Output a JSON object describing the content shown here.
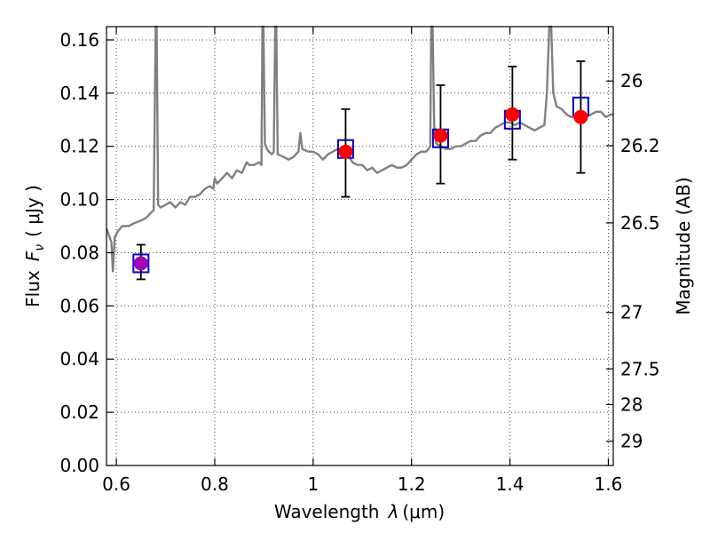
{
  "chart_data": {
    "type": "scatter",
    "xlabel_text": "Wavelength",
    "xlabel_symbol": "λ",
    "xlabel_unit": "(μm)",
    "ylabel_text": "Flux",
    "ylabel_symbol": "F",
    "ylabel_subscript": "ν",
    "ylabel_unit": "( μJy )",
    "y2label": "Magnitude (AB)",
    "xlim": [
      0.58,
      1.61
    ],
    "ylim": [
      0.0,
      0.165
    ],
    "x_ticks": [
      0.6,
      0.8,
      1.0,
      1.2,
      1.4,
      1.6
    ],
    "x_tick_labels": [
      "0.6",
      "0.8",
      "1",
      "1.2",
      "1.4",
      "1.6"
    ],
    "y_ticks": [
      0.0,
      0.02,
      0.04,
      0.06,
      0.08,
      0.1,
      0.12,
      0.14,
      0.16
    ],
    "y_tick_labels": [
      "0.00",
      "0.02",
      "0.04",
      "0.06",
      "0.08",
      "0.10",
      "0.12",
      "0.14",
      "0.16"
    ],
    "y2_ticks": [
      26,
      26.2,
      26.5,
      27,
      27.5,
      28,
      29
    ],
    "y2_tick_labels": [
      "26",
      "26.2",
      "26.5",
      "27",
      "27.5",
      "28",
      "29"
    ],
    "grid": true,
    "colors": {
      "model": "#808080",
      "photometry_box": "#0000cc",
      "measured": "#ff0000",
      "measured_first": "#a000b8",
      "errorbar": "#000000"
    },
    "series": [
      {
        "name": "model spectrum",
        "kind": "line",
        "points": [
          [
            0.58,
            0.089
          ],
          [
            0.586,
            0.086
          ],
          [
            0.59,
            0.084
          ],
          [
            0.593,
            0.073
          ],
          [
            0.597,
            0.086
          ],
          [
            0.603,
            0.088
          ],
          [
            0.612,
            0.09
          ],
          [
            0.625,
            0.09
          ],
          [
            0.635,
            0.091
          ],
          [
            0.648,
            0.092
          ],
          [
            0.66,
            0.093
          ],
          [
            0.67,
            0.095
          ],
          [
            0.676,
            0.096
          ],
          [
            0.68,
            0.165
          ],
          [
            0.682,
            0.165
          ],
          [
            0.685,
            0.098
          ],
          [
            0.69,
            0.097
          ],
          [
            0.7,
            0.098
          ],
          [
            0.71,
            0.099
          ],
          [
            0.72,
            0.097
          ],
          [
            0.73,
            0.099
          ],
          [
            0.74,
            0.098
          ],
          [
            0.75,
            0.101
          ],
          [
            0.76,
            0.101
          ],
          [
            0.77,
            0.102
          ],
          [
            0.78,
            0.104
          ],
          [
            0.79,
            0.105
          ],
          [
            0.797,
            0.104
          ],
          [
            0.8,
            0.108
          ],
          [
            0.805,
            0.106
          ],
          [
            0.815,
            0.108
          ],
          [
            0.825,
            0.11
          ],
          [
            0.835,
            0.108
          ],
          [
            0.845,
            0.111
          ],
          [
            0.855,
            0.11
          ],
          [
            0.865,
            0.114
          ],
          [
            0.87,
            0.113
          ],
          [
            0.88,
            0.113
          ],
          [
            0.89,
            0.114
          ],
          [
            0.895,
            0.113
          ],
          [
            0.897,
            0.165
          ],
          [
            0.899,
            0.165
          ],
          [
            0.902,
            0.121
          ],
          [
            0.906,
            0.119
          ],
          [
            0.91,
            0.118
          ],
          [
            0.916,
            0.117
          ],
          [
            0.92,
            0.118
          ],
          [
            0.923,
            0.165
          ],
          [
            0.925,
            0.165
          ],
          [
            0.928,
            0.117
          ],
          [
            0.94,
            0.116
          ],
          [
            0.95,
            0.115
          ],
          [
            0.96,
            0.116
          ],
          [
            0.97,
            0.118
          ],
          [
            0.974,
            0.125
          ],
          [
            0.978,
            0.119
          ],
          [
            0.99,
            0.118
          ],
          [
            1.0,
            0.118
          ],
          [
            1.01,
            0.117
          ],
          [
            1.02,
            0.115
          ],
          [
            1.03,
            0.117
          ],
          [
            1.04,
            0.118
          ],
          [
            1.05,
            0.119
          ],
          [
            1.06,
            0.118
          ],
          [
            1.07,
            0.117
          ],
          [
            1.08,
            0.114
          ],
          [
            1.09,
            0.113
          ],
          [
            1.1,
            0.113
          ],
          [
            1.11,
            0.111
          ],
          [
            1.12,
            0.112
          ],
          [
            1.13,
            0.11
          ],
          [
            1.14,
            0.111
          ],
          [
            1.15,
            0.112
          ],
          [
            1.16,
            0.113
          ],
          [
            1.17,
            0.112
          ],
          [
            1.18,
            0.112
          ],
          [
            1.19,
            0.113
          ],
          [
            1.2,
            0.115
          ],
          [
            1.21,
            0.117
          ],
          [
            1.22,
            0.118
          ],
          [
            1.23,
            0.118
          ],
          [
            1.238,
            0.12
          ],
          [
            1.24,
            0.165
          ],
          [
            1.243,
            0.165
          ],
          [
            1.246,
            0.128
          ],
          [
            1.25,
            0.121
          ],
          [
            1.26,
            0.12
          ],
          [
            1.27,
            0.119
          ],
          [
            1.28,
            0.119
          ],
          [
            1.29,
            0.12
          ],
          [
            1.3,
            0.12
          ],
          [
            1.31,
            0.121
          ],
          [
            1.32,
            0.122
          ],
          [
            1.33,
            0.122
          ],
          [
            1.34,
            0.124
          ],
          [
            1.35,
            0.125
          ],
          [
            1.36,
            0.125
          ],
          [
            1.37,
            0.127
          ],
          [
            1.38,
            0.128
          ],
          [
            1.39,
            0.129
          ],
          [
            1.4,
            0.129
          ],
          [
            1.41,
            0.128
          ],
          [
            1.42,
            0.129
          ],
          [
            1.43,
            0.128
          ],
          [
            1.44,
            0.127
          ],
          [
            1.45,
            0.126
          ],
          [
            1.46,
            0.127
          ],
          [
            1.47,
            0.128
          ],
          [
            1.475,
            0.14
          ],
          [
            1.48,
            0.165
          ],
          [
            1.484,
            0.165
          ],
          [
            1.488,
            0.14
          ],
          [
            1.495,
            0.135
          ],
          [
            1.505,
            0.134
          ],
          [
            1.515,
            0.132
          ],
          [
            1.525,
            0.131
          ],
          [
            1.535,
            0.131
          ],
          [
            1.545,
            0.131
          ],
          [
            1.555,
            0.131
          ],
          [
            1.565,
            0.132
          ],
          [
            1.575,
            0.133
          ],
          [
            1.585,
            0.133
          ],
          [
            1.595,
            0.131
          ],
          [
            1.605,
            0.132
          ],
          [
            1.61,
            0.132
          ]
        ]
      },
      {
        "name": "synthetic photometry",
        "kind": "open-square",
        "x": [
          0.65,
          1.066,
          1.259,
          1.405,
          1.544
        ],
        "y": [
          0.076,
          0.119,
          0.123,
          0.13,
          0.135
        ]
      },
      {
        "name": "observed photometry",
        "kind": "filled-circle-errorbar",
        "x": [
          0.65,
          1.066,
          1.259,
          1.405,
          1.544
        ],
        "y": [
          0.076,
          0.118,
          0.124,
          0.132,
          0.131
        ],
        "yerr_low": [
          0.07,
          0.101,
          0.106,
          0.115,
          0.11
        ],
        "yerr_high": [
          0.083,
          0.134,
          0.143,
          0.15,
          0.152
        ]
      }
    ]
  }
}
